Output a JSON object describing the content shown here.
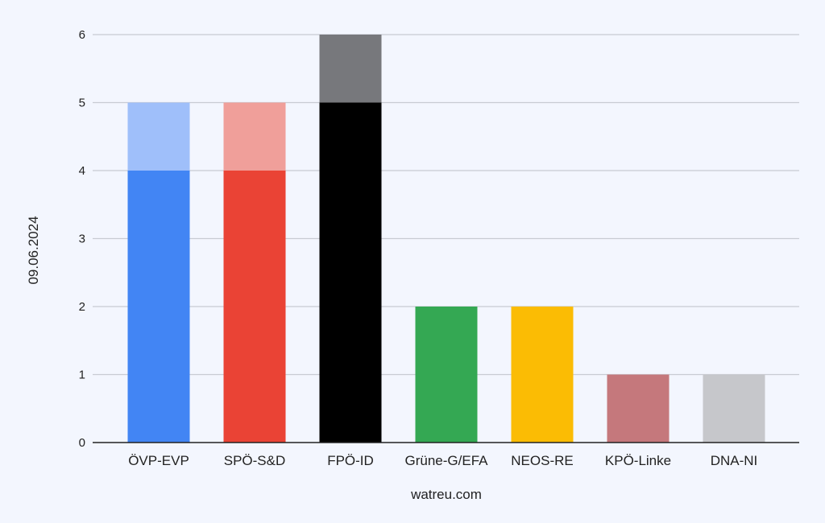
{
  "chart_data": {
    "type": "bar",
    "stacked": true,
    "categories": [
      "ÖVP-EVP",
      "SPÖ-S&D",
      "FPÖ-ID",
      "Grüne-G/EFA",
      "NEOS-RE",
      "KPÖ-Linke",
      "DNA-NI"
    ],
    "series": [
      {
        "values": [
          4,
          4,
          5,
          2,
          2,
          1,
          1
        ],
        "colors": [
          "#4285f4",
          "#ea4335",
          "#000000",
          "#34a853",
          "#fbbc04",
          "#c5787c",
          "#c6c7cb"
        ]
      },
      {
        "values": [
          1,
          1,
          1,
          0,
          0,
          0,
          0
        ],
        "colors": [
          "#9fbffa",
          "#f09f9a",
          "#77787c",
          "#9ed4a9",
          "#fddd81",
          "#e2bbbd",
          "#e2e3e5"
        ]
      }
    ],
    "xlabel": "watreu.com",
    "ylabel": "09.06.2024",
    "ylim": [
      0,
      6
    ],
    "yticks": [
      0,
      1,
      2,
      3,
      4,
      5,
      6
    ],
    "grid": true,
    "legend": "none"
  },
  "colors": {
    "background": "#f3f6fe",
    "grid": "#c8cbd3",
    "axis": "#222222"
  }
}
